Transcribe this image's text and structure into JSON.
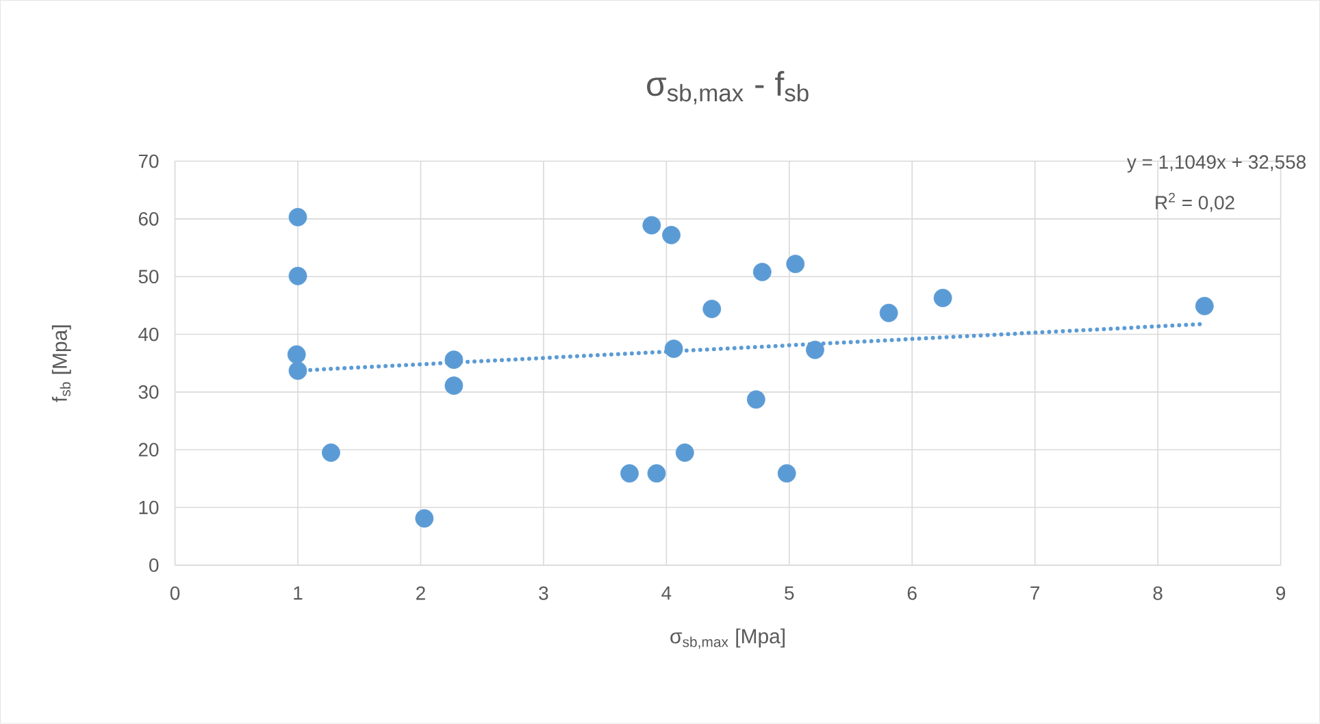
{
  "chart_data": {
    "type": "scatter",
    "title": "σ$_{sb,max}$ - f$_{sb}$",
    "xlabel": "σ$_{sb,max}$ [Mpa]",
    "ylabel": "f$_{sb}$ [Mpa]",
    "annotations": [
      "y = 1,1049x + 32,558",
      "R$^{2}$ = 0,02"
    ],
    "xlim": [
      0,
      9
    ],
    "ylim": [
      0,
      70
    ],
    "xticks": [
      0,
      1,
      2,
      3,
      4,
      5,
      6,
      7,
      8,
      9
    ],
    "yticks": [
      0,
      10,
      20,
      30,
      40,
      50,
      60,
      70
    ],
    "grid": true,
    "marker": "circle",
    "series": [
      {
        "type": "scatter",
        "color": "#5b9bd5",
        "x": [
          1.0,
          1.0,
          0.99,
          1.0,
          1.27,
          2.03,
          2.27,
          2.27,
          3.7,
          3.88,
          3.92,
          4.04,
          4.06,
          4.15,
          4.37,
          4.73,
          4.78,
          4.98,
          5.05,
          5.21,
          5.81,
          6.25,
          8.38
        ],
        "values": [
          60.3,
          50.1,
          36.5,
          33.7,
          19.5,
          8.1,
          35.6,
          31.1,
          15.9,
          58.9,
          15.9,
          57.2,
          37.5,
          19.5,
          44.4,
          28.7,
          50.8,
          15.9,
          52.2,
          37.3,
          43.7,
          46.3,
          44.9
        ]
      },
      {
        "type": "line",
        "color": "#5b9bd5",
        "line_style": "dotted",
        "marker": "none",
        "x": [
          0.99,
          8.38
        ],
        "values": [
          33.7,
          41.8
        ]
      }
    ]
  }
}
